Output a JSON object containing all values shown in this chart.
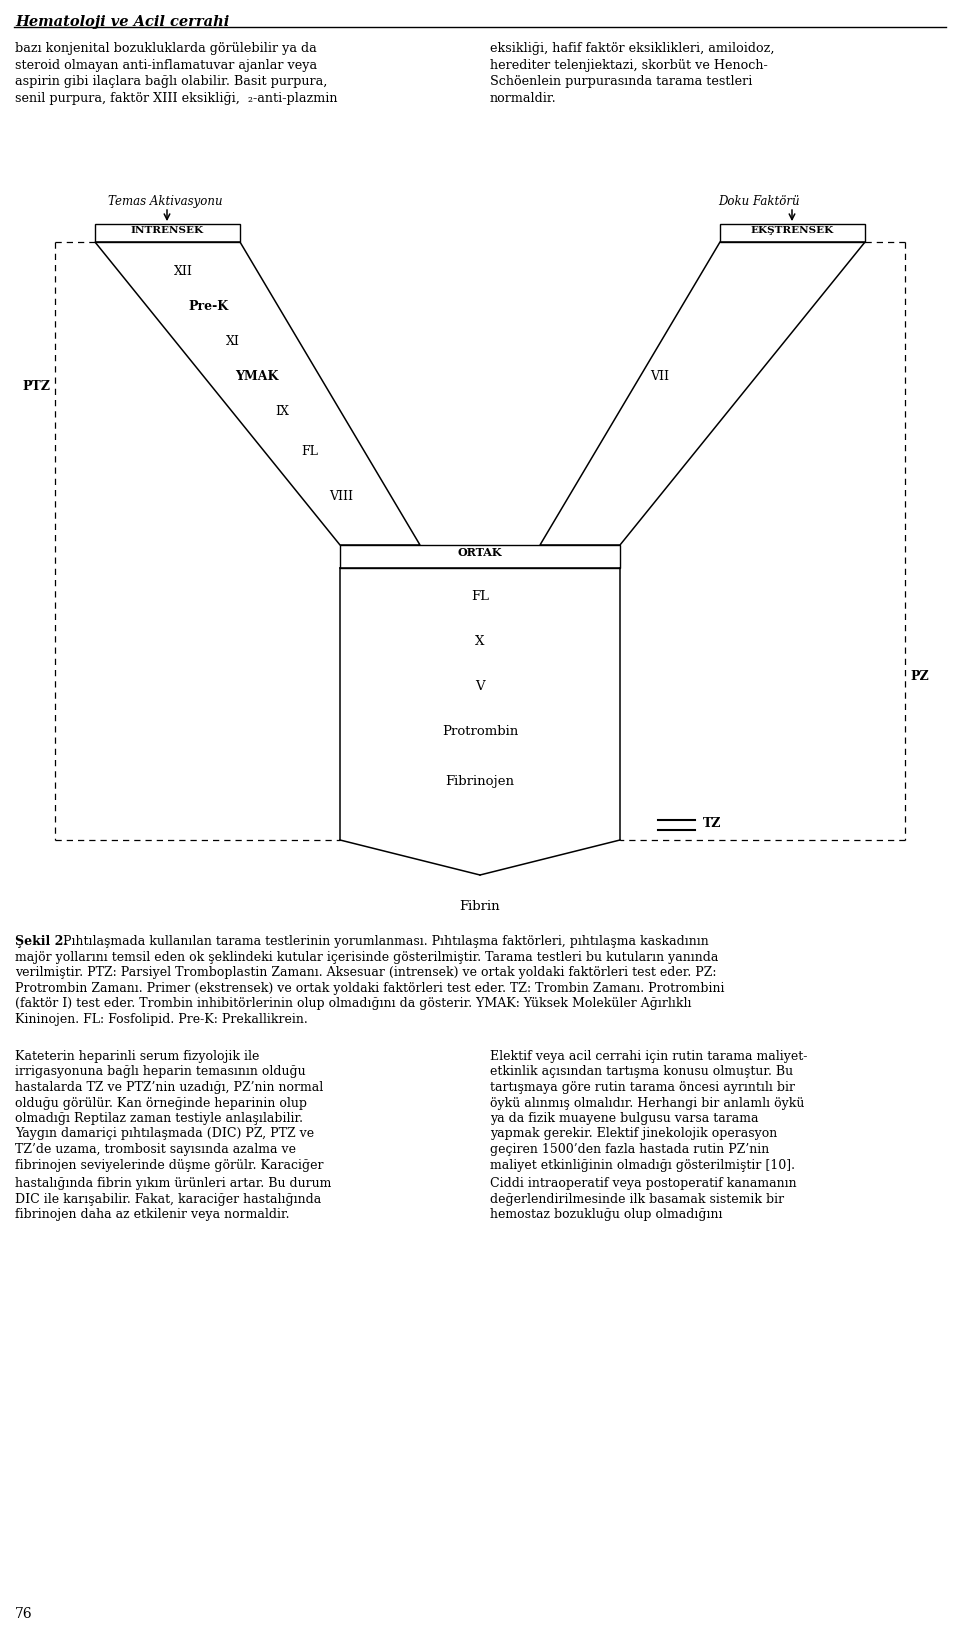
{
  "title_header": "Hematoloji ve Acil cerrahi",
  "intro_text_left": "bazı konjenital bozukluklarda görülebilir ya da\nsteroid olmayan anti-inflamatuvar ajanlar veya\naspirin gibi ilaçlara bağlı olabilir. Basit purpura,\nsenil purpura, faktör XIII eksikliği,  ₂-anti-plazmin",
  "intro_text_right": "eksikliği, hafif faktör eksiklikleri, amiloidoz,\nherediter telenjiektazi, skorbüt ve Henoch-\nSchöenlein purpurasında tarama testleri\nnormaldir.",
  "left_header": "Temas Aktivasyonu",
  "right_header": "Doku Faktörü",
  "left_box_label": "INTRENSEK",
  "right_box_label": "EKŞTRENSEK",
  "common_box_label": "ORTAK",
  "left_factors": [
    "XII",
    "Pre-K",
    "XI",
    "YMAK",
    "IX",
    "FL",
    "VIII"
  ],
  "right_factor": "VII",
  "common_factors": [
    "FL",
    "X",
    "V",
    "Protrombin",
    "Fibrinojen"
  ],
  "ptz_label": "PTZ",
  "pz_label": "PZ",
  "tz_label": "TZ",
  "fibrin_label": "Fibrin",
  "caption_bold": "Şekil 2.",
  "caption_rest": " Pıhtılaşmada kullanılan tarama testlerinin yorumlanması. Pıhtılaşma faktörleri, pıhtılaşma kaskadının\nmajör yollarını temsil eden ok şeklindeki kutular içerisinde gösterilmiştir. Tarama testleri bu kutuların yanında\nverilmiştir. PTZ: Parsiyel Tromboplastin Zamanı. Aksesuar (intrensek) ve ortak yoldaki faktörleri test eder. PZ:\nProtrombin Zamanı. Primer (ekstrensek) ve ortak yoldaki faktörleri test eder. TZ: Trombin Zamanı. Protrombini\n(faktör I) test eder. Trombin inhibitörlerinin olup olmadığını da gösterir. YMAK: Yüksek Moleküler Ağırlıklı\nKininojen. FL: Fosfolipid. Pre-K: Prekallikrein.",
  "body_left_col": "Kateterin heparinli serum fizyolojik ile\nirrigasyonuna bağlı heparin temasının olduğu\nhastalarda TZ ve PTZ’nin uzadığı, PZ’nin normal\nolduğu görülür. Kan örneğinde heparinin olup\nolmadığı Reptilaz zaman testiyle anlaşılabilir.\nYaygın damariçi pıhtılaşmada (DIC) PZ, PTZ ve\nTZ’de uzama, trombosit sayısında azalma ve\nfibrinojen seviyelerinde düşme görülr. Karaciğer",
  "body_right_col": "Elektif veya acil cerrahi için rutin tarama maliyet-\netkinlik açısından tartışma konusu olmuştur. Bu\ntartışmaya göre rutin tarama öncesi ayrıntılı bir\nöykü alınmış olmalıdır. Herhangi bir anlamlı öykü\nya da fizik muayene bulgusu varsa tarama\nyapmak gerekir. Elektif jinekolojik operasyon\ngeçiren 1500’den fazla hastada rutin PZ’nin\nmaliyet etkinliğinin olmadığı gösterilmiştir [10].",
  "bottom_left_col": "hastalığında fibrin yıkım ürünleri artar. Bu durum\nDIC ile karışabilir. Fakat, karaciğer hastalığında\nfibrinojen daha az etkilenir veya normaldir.",
  "bottom_right_col": "Ciddi intraoperatif veya postoperatif kanamanın\ndeğerlendirilmesinde ilk basamak sistemik bir\nhemostaz bozukluğu olup olmadığını",
  "page_number": "76"
}
